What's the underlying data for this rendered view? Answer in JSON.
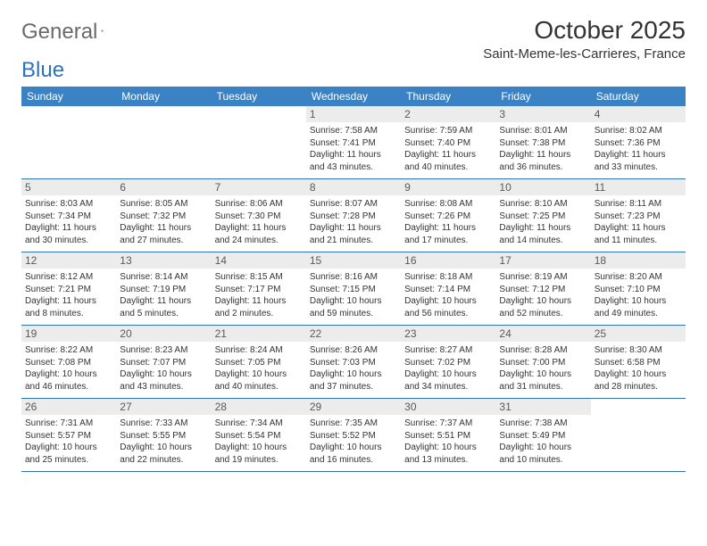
{
  "brand": {
    "word1": "General",
    "word2": "Blue"
  },
  "title": "October 2025",
  "location": "Saint-Meme-les-Carrieres, France",
  "colors": {
    "header_bg": "#3b82c4",
    "daynum_bg": "#ececec",
    "rule": "#2f73b7",
    "logo_gray": "#6a6a6a",
    "logo_blue": "#2f73b7"
  },
  "dow": [
    "Sunday",
    "Monday",
    "Tuesday",
    "Wednesday",
    "Thursday",
    "Friday",
    "Saturday"
  ],
  "weeks": [
    [
      null,
      null,
      null,
      {
        "n": "1",
        "sr": "7:58 AM",
        "ss": "7:41 PM",
        "dl": "11 hours and 43 minutes."
      },
      {
        "n": "2",
        "sr": "7:59 AM",
        "ss": "7:40 PM",
        "dl": "11 hours and 40 minutes."
      },
      {
        "n": "3",
        "sr": "8:01 AM",
        "ss": "7:38 PM",
        "dl": "11 hours and 36 minutes."
      },
      {
        "n": "4",
        "sr": "8:02 AM",
        "ss": "7:36 PM",
        "dl": "11 hours and 33 minutes."
      }
    ],
    [
      {
        "n": "5",
        "sr": "8:03 AM",
        "ss": "7:34 PM",
        "dl": "11 hours and 30 minutes."
      },
      {
        "n": "6",
        "sr": "8:05 AM",
        "ss": "7:32 PM",
        "dl": "11 hours and 27 minutes."
      },
      {
        "n": "7",
        "sr": "8:06 AM",
        "ss": "7:30 PM",
        "dl": "11 hours and 24 minutes."
      },
      {
        "n": "8",
        "sr": "8:07 AM",
        "ss": "7:28 PM",
        "dl": "11 hours and 21 minutes."
      },
      {
        "n": "9",
        "sr": "8:08 AM",
        "ss": "7:26 PM",
        "dl": "11 hours and 17 minutes."
      },
      {
        "n": "10",
        "sr": "8:10 AM",
        "ss": "7:25 PM",
        "dl": "11 hours and 14 minutes."
      },
      {
        "n": "11",
        "sr": "8:11 AM",
        "ss": "7:23 PM",
        "dl": "11 hours and 11 minutes."
      }
    ],
    [
      {
        "n": "12",
        "sr": "8:12 AM",
        "ss": "7:21 PM",
        "dl": "11 hours and 8 minutes."
      },
      {
        "n": "13",
        "sr": "8:14 AM",
        "ss": "7:19 PM",
        "dl": "11 hours and 5 minutes."
      },
      {
        "n": "14",
        "sr": "8:15 AM",
        "ss": "7:17 PM",
        "dl": "11 hours and 2 minutes."
      },
      {
        "n": "15",
        "sr": "8:16 AM",
        "ss": "7:15 PM",
        "dl": "10 hours and 59 minutes."
      },
      {
        "n": "16",
        "sr": "8:18 AM",
        "ss": "7:14 PM",
        "dl": "10 hours and 56 minutes."
      },
      {
        "n": "17",
        "sr": "8:19 AM",
        "ss": "7:12 PM",
        "dl": "10 hours and 52 minutes."
      },
      {
        "n": "18",
        "sr": "8:20 AM",
        "ss": "7:10 PM",
        "dl": "10 hours and 49 minutes."
      }
    ],
    [
      {
        "n": "19",
        "sr": "8:22 AM",
        "ss": "7:08 PM",
        "dl": "10 hours and 46 minutes."
      },
      {
        "n": "20",
        "sr": "8:23 AM",
        "ss": "7:07 PM",
        "dl": "10 hours and 43 minutes."
      },
      {
        "n": "21",
        "sr": "8:24 AM",
        "ss": "7:05 PM",
        "dl": "10 hours and 40 minutes."
      },
      {
        "n": "22",
        "sr": "8:26 AM",
        "ss": "7:03 PM",
        "dl": "10 hours and 37 minutes."
      },
      {
        "n": "23",
        "sr": "8:27 AM",
        "ss": "7:02 PM",
        "dl": "10 hours and 34 minutes."
      },
      {
        "n": "24",
        "sr": "8:28 AM",
        "ss": "7:00 PM",
        "dl": "10 hours and 31 minutes."
      },
      {
        "n": "25",
        "sr": "8:30 AM",
        "ss": "6:58 PM",
        "dl": "10 hours and 28 minutes."
      }
    ],
    [
      {
        "n": "26",
        "sr": "7:31 AM",
        "ss": "5:57 PM",
        "dl": "10 hours and 25 minutes."
      },
      {
        "n": "27",
        "sr": "7:33 AM",
        "ss": "5:55 PM",
        "dl": "10 hours and 22 minutes."
      },
      {
        "n": "28",
        "sr": "7:34 AM",
        "ss": "5:54 PM",
        "dl": "10 hours and 19 minutes."
      },
      {
        "n": "29",
        "sr": "7:35 AM",
        "ss": "5:52 PM",
        "dl": "10 hours and 16 minutes."
      },
      {
        "n": "30",
        "sr": "7:37 AM",
        "ss": "5:51 PM",
        "dl": "10 hours and 13 minutes."
      },
      {
        "n": "31",
        "sr": "7:38 AM",
        "ss": "5:49 PM",
        "dl": "10 hours and 10 minutes."
      },
      null
    ]
  ],
  "labels": {
    "sunrise": "Sunrise:",
    "sunset": "Sunset:",
    "daylight": "Daylight:"
  }
}
